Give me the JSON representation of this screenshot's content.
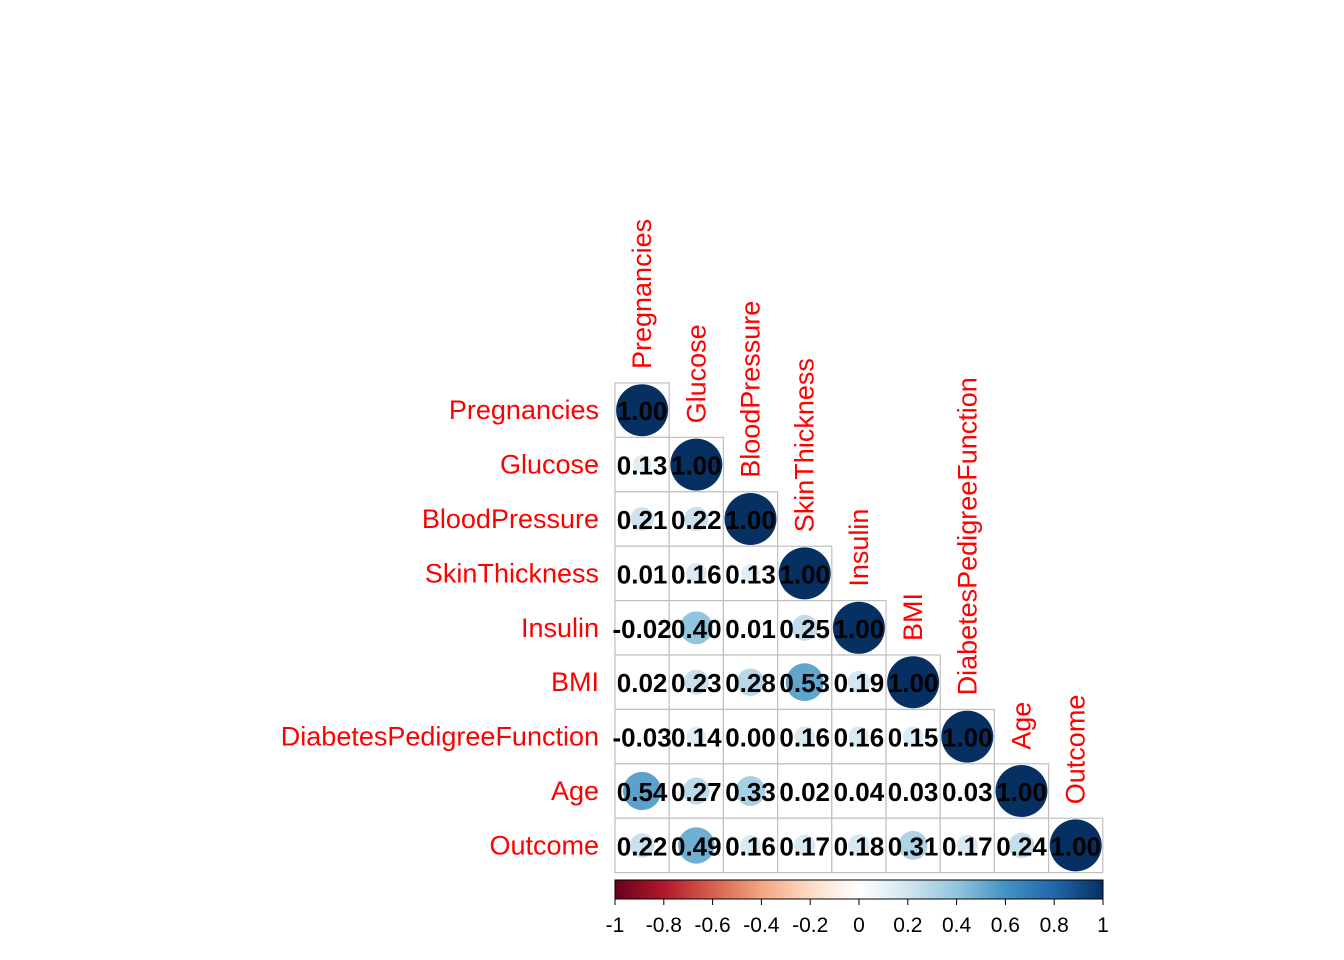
{
  "chart_data": {
    "type": "heatmap",
    "variables": [
      "Pregnancies",
      "Glucose",
      "BloodPressure",
      "SkinThickness",
      "Insulin",
      "BMI",
      "DiabetesPedigreeFunction",
      "Age",
      "Outcome"
    ],
    "matrix": [
      [
        1.0
      ],
      [
        0.13,
        1.0
      ],
      [
        0.21,
        0.22,
        1.0
      ],
      [
        0.01,
        0.16,
        0.13,
        1.0
      ],
      [
        -0.02,
        0.4,
        0.01,
        0.25,
        1.0
      ],
      [
        0.02,
        0.23,
        0.28,
        0.53,
        0.19,
        1.0
      ],
      [
        -0.03,
        0.14,
        0.0,
        0.16,
        0.16,
        0.15,
        1.0
      ],
      [
        0.54,
        0.27,
        0.33,
        0.02,
        0.04,
        0.03,
        0.03,
        1.0
      ],
      [
        0.22,
        0.49,
        0.16,
        0.17,
        0.18,
        0.31,
        0.17,
        0.24,
        1.0
      ]
    ],
    "labels": [
      [
        "1.00"
      ],
      [
        "0.13",
        "1.00"
      ],
      [
        "0.21",
        "0.22",
        "1.00"
      ],
      [
        "0.01",
        "0.16",
        "0.13",
        "1.00"
      ],
      [
        "-0.02",
        "0.40",
        "0.01",
        "0.25",
        "1.00"
      ],
      [
        "0.02",
        "0.23",
        "0.28",
        "0.53",
        "0.19",
        "1.00"
      ],
      [
        "-0.03",
        "0.14",
        "0.00",
        "0.16",
        "0.16",
        "0.15",
        "1.00"
      ],
      [
        "0.54",
        "0.27",
        "0.33",
        "0.02",
        "0.04",
        "0.03",
        "0.03",
        "1.00"
      ],
      [
        "0.22",
        "0.49",
        "0.16",
        "0.17",
        "0.18",
        "0.31",
        "0.17",
        "0.24",
        "1.00"
      ]
    ],
    "shape": "circle",
    "triangle": "lower",
    "colorbar": {
      "range": [
        -1,
        1
      ],
      "ticks": [
        "-1",
        "-0.8",
        "-0.6",
        "-0.4",
        "-0.2",
        "0",
        "0.2",
        "0.4",
        "0.6",
        "0.8",
        "1"
      ],
      "colors": [
        "#67001f",
        "#b2182b",
        "#d6604d",
        "#f4a582",
        "#fddbc7",
        "#ffffff",
        "#d1e5f0",
        "#92c5de",
        "#4393c3",
        "#2166ac",
        "#053061"
      ]
    },
    "label_color": "#ff0000",
    "value_color": "#000000",
    "grid_color": "#c0c0c0"
  }
}
